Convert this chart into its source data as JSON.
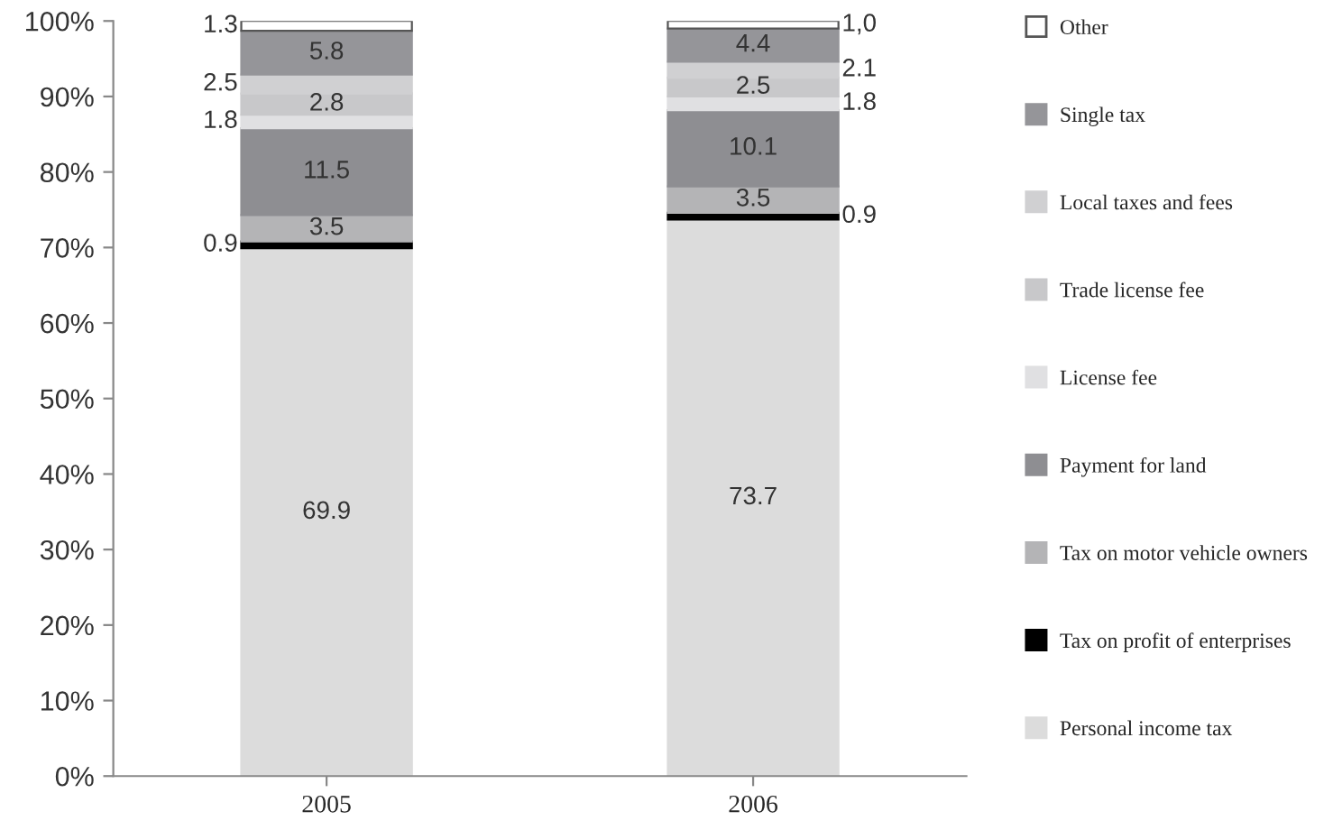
{
  "chart_data": {
    "type": "bar",
    "stacked": true,
    "categories": [
      "2005",
      "2006"
    ],
    "series": [
      {
        "name": "Personal income tax",
        "color": "#dcdcdc",
        "values": [
          69.9,
          73.7
        ],
        "value_labels": [
          "69.9",
          "73.7"
        ]
      },
      {
        "name": "Tax on profit of enterprises",
        "color": "#000000",
        "values": [
          0.9,
          0.9
        ],
        "value_labels": [
          "0.9",
          "0.9"
        ]
      },
      {
        "name": "Tax on motor vehicle owners",
        "color": "#b4b4b6",
        "values": [
          3.5,
          3.5
        ],
        "value_labels": [
          "3.5",
          "3.5"
        ]
      },
      {
        "name": "Payment for land",
        "color": "#8e8e92",
        "values": [
          11.5,
          10.1
        ],
        "value_labels": [
          "11.5",
          "10.1"
        ]
      },
      {
        "name": "License fee",
        "color": "#e0e0e2",
        "values": [
          1.8,
          1.8
        ],
        "value_labels": [
          "1.8",
          "1.8"
        ]
      },
      {
        "name": "Trade license fee",
        "color": "#c8c8ca",
        "values": [
          2.8,
          2.5
        ],
        "value_labels": [
          "2.8",
          "2.5"
        ]
      },
      {
        "name": "Local taxes and fees",
        "color": "#d0d0d2",
        "values": [
          2.5,
          2.1
        ],
        "value_labels": [
          "2.5",
          "2.1"
        ]
      },
      {
        "name": "Single tax",
        "color": "#959599",
        "values": [
          5.8,
          4.4
        ],
        "value_labels": [
          "5.8",
          "4.4"
        ]
      },
      {
        "name": "Other",
        "color": "#ffffff",
        "values": [
          1.3,
          1.0
        ],
        "value_labels": [
          "1.3",
          "1,0"
        ]
      }
    ],
    "ylim": [
      0,
      100
    ],
    "yticks": [
      {
        "value": 0,
        "label": "0%"
      },
      {
        "value": 10,
        "label": "10%"
      },
      {
        "value": 20,
        "label": "20%"
      },
      {
        "value": 30,
        "label": "30%"
      },
      {
        "value": 40,
        "label": "40%"
      },
      {
        "value": 50,
        "label": "50%"
      },
      {
        "value": 60,
        "label": "60%"
      },
      {
        "value": 70,
        "label": "70%"
      },
      {
        "value": 80,
        "label": "80%"
      },
      {
        "value": 90,
        "label": "90%"
      },
      {
        "value": 100,
        "label": "100%"
      }
    ],
    "grid": false,
    "legend": "right",
    "marker": "square"
  }
}
